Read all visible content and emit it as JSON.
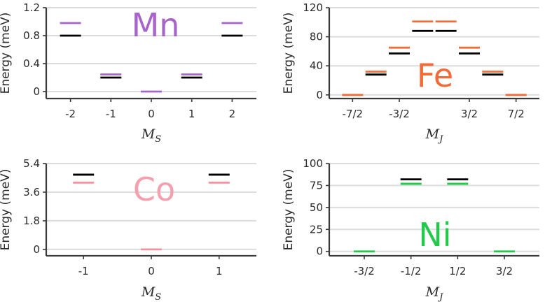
{
  "chart_data": [
    {
      "type": "level-diagram",
      "element": "Mn",
      "element_color": "#a865c9",
      "ylabel": "Energy (meV)",
      "xlabel": "M",
      "xlabel_sub": "S",
      "xticks": [
        "-2",
        "-1",
        "0",
        "1",
        "2"
      ],
      "ylim": [
        -0.1,
        1.2
      ],
      "yticks": [
        "0",
        "0.4",
        "0.8",
        "1.2"
      ],
      "ytick_values": [
        0,
        0.4,
        0.8,
        1.2
      ],
      "series": [
        {
          "name": "colored",
          "color": "#a865c9",
          "points": [
            {
              "x": -2,
              "y": 0.98
            },
            {
              "x": -1,
              "y": 0.245
            },
            {
              "x": 0,
              "y": 0.0
            },
            {
              "x": 1,
              "y": 0.245
            },
            {
              "x": 2,
              "y": 0.98
            }
          ]
        },
        {
          "name": "black",
          "color": "#000000",
          "points": [
            {
              "x": -2,
              "y": 0.8
            },
            {
              "x": -1,
              "y": 0.2
            },
            {
              "x": 1,
              "y": 0.2
            },
            {
              "x": 2,
              "y": 0.8
            }
          ]
        }
      ]
    },
    {
      "type": "level-diagram",
      "element": "Fe",
      "element_color": "#f26b38",
      "ylabel": "Energy (meV)",
      "xlabel": "M",
      "xlabel_sub": "J",
      "x_range": [
        -4.5,
        4.5
      ],
      "xticks": [
        "-7/2",
        "-3/2",
        "3/2",
        "7/2"
      ],
      "xtick_values": [
        -3.5,
        -1.5,
        1.5,
        3.5
      ],
      "ylim": [
        -5,
        120
      ],
      "yticks": [
        "0",
        "40",
        "80",
        "120"
      ],
      "ytick_values": [
        0,
        40,
        80,
        120
      ],
      "series": [
        {
          "name": "colored",
          "color": "#f26b38",
          "points": [
            {
              "x": -3.5,
              "y": 0
            },
            {
              "x": -2.5,
              "y": 32
            },
            {
              "x": -1.5,
              "y": 65
            },
            {
              "x": -0.5,
              "y": 101
            },
            {
              "x": 0.5,
              "y": 101
            },
            {
              "x": 1.5,
              "y": 65
            },
            {
              "x": 2.5,
              "y": 32
            },
            {
              "x": 3.5,
              "y": 0
            }
          ]
        },
        {
          "name": "black",
          "color": "#000000",
          "points": [
            {
              "x": -2.5,
              "y": 28
            },
            {
              "x": -1.5,
              "y": 57
            },
            {
              "x": -0.5,
              "y": 88
            },
            {
              "x": 0.5,
              "y": 88
            },
            {
              "x": 1.5,
              "y": 57
            },
            {
              "x": 2.5,
              "y": 28
            }
          ]
        }
      ]
    },
    {
      "type": "level-diagram",
      "element": "Co",
      "element_color": "#f4a0ad",
      "ylabel": "Energy (meV)",
      "xlabel": "M",
      "xlabel_sub": "S",
      "xticks": [
        "-1",
        "0",
        "1"
      ],
      "ylim": [
        -0.4,
        5.4
      ],
      "yticks": [
        "0",
        "1.8",
        "3.6",
        "5.4"
      ],
      "ytick_values": [
        0,
        1.8,
        3.6,
        5.4
      ],
      "series": [
        {
          "name": "colored",
          "color": "#f291a0",
          "points": [
            {
              "x": -1,
              "y": 4.2
            },
            {
              "x": 0,
              "y": 0.0
            },
            {
              "x": 1,
              "y": 4.2
            }
          ]
        },
        {
          "name": "black",
          "color": "#000000",
          "points": [
            {
              "x": -1,
              "y": 4.7
            },
            {
              "x": 1,
              "y": 4.7
            }
          ]
        }
      ]
    },
    {
      "type": "level-diagram",
      "element": "Ni",
      "element_color": "#22c94a",
      "ylabel": "Energy (meV)",
      "xlabel": "M",
      "xlabel_sub": "J",
      "xticks": [
        "-3/2",
        "-1/2",
        "1/2",
        "3/2"
      ],
      "xtick_values": [
        -1.5,
        -0.5,
        0.5,
        1.5
      ],
      "ylim": [
        -5,
        100
      ],
      "yticks": [
        "0",
        "25",
        "50",
        "75",
        "100"
      ],
      "ytick_values": [
        0,
        25,
        50,
        75,
        100
      ],
      "series": [
        {
          "name": "colored",
          "color": "#22c94a",
          "points": [
            {
              "x": -1.5,
              "y": 0
            },
            {
              "x": -0.5,
              "y": 77
            },
            {
              "x": 0.5,
              "y": 77
            },
            {
              "x": 1.5,
              "y": 0
            }
          ]
        },
        {
          "name": "black",
          "color": "#000000",
          "points": [
            {
              "x": -0.5,
              "y": 82
            },
            {
              "x": 0.5,
              "y": 82
            }
          ]
        }
      ]
    }
  ]
}
